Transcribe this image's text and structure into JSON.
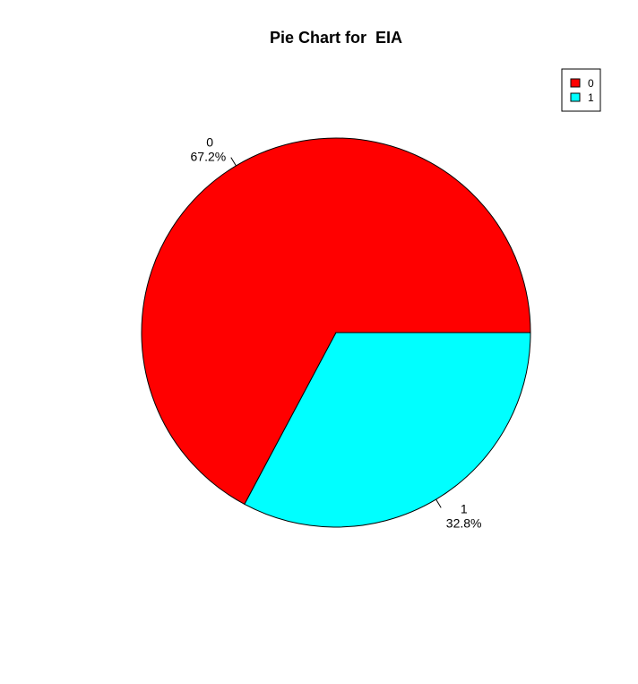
{
  "chart_data": {
    "type": "pie",
    "title": "Pie Chart for  EIA",
    "slices": [
      {
        "label": "0",
        "percent_label": "67.2%",
        "value": 67.2,
        "color": "#ff0000"
      },
      {
        "label": "1",
        "percent_label": "32.8%",
        "value": 32.8,
        "color": "#00ffff"
      }
    ],
    "legend": {
      "position": "top-right",
      "entries": [
        {
          "label": "0",
          "color": "#ff0000"
        },
        {
          "label": "1",
          "color": "#00ffff"
        }
      ]
    }
  }
}
